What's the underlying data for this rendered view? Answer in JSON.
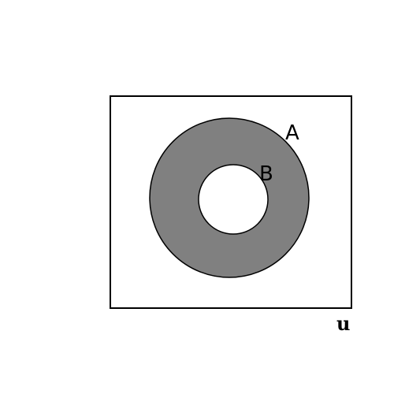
{
  "diagram": {
    "universe_label": "u",
    "sets": [
      {
        "name": "set-a",
        "label": "A"
      },
      {
        "name": "set-b",
        "label": "B"
      }
    ],
    "colors": {
      "shaded": "#808080",
      "unshaded": "#ffffff",
      "outline": "#000000"
    }
  }
}
